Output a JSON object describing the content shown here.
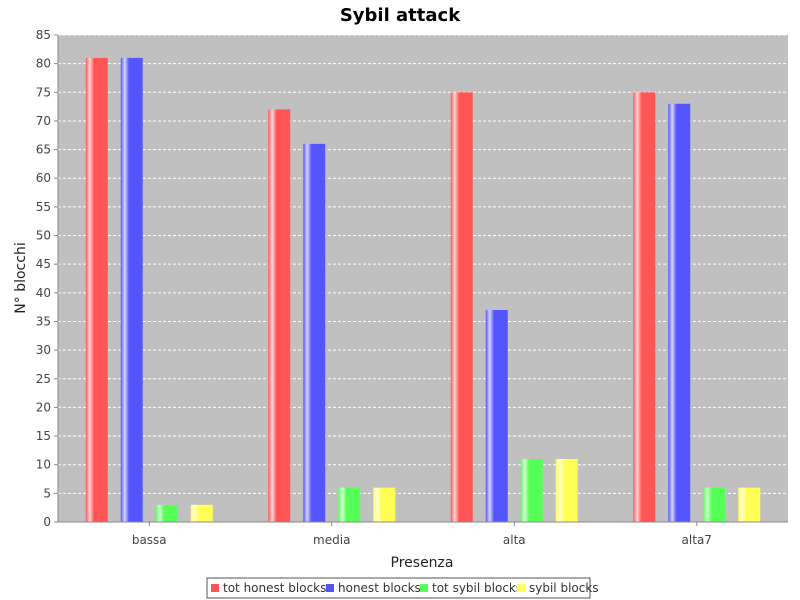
{
  "chart_data": {
    "type": "bar",
    "title": "Sybil attack",
    "xlabel": "Presenza",
    "ylabel": "N° blocchi",
    "categories": [
      "bassa",
      "media",
      "alta",
      "alta7"
    ],
    "series": [
      {
        "name": "tot honest blocks",
        "color": "#ff5555",
        "values": [
          81,
          72,
          75,
          75
        ]
      },
      {
        "name": "honest blocks",
        "color": "#5555ff",
        "values": [
          81,
          66,
          37,
          73
        ]
      },
      {
        "name": "tot sybil blocks",
        "color": "#55ff55",
        "values": [
          3,
          6,
          11,
          6
        ]
      },
      {
        "name": "sybil blocks",
        "color": "#ffff55",
        "values": [
          3,
          6,
          11,
          6
        ]
      }
    ],
    "ylim": [
      0,
      85
    ],
    "yticks": [
      0,
      5,
      10,
      15,
      20,
      25,
      30,
      35,
      40,
      45,
      50,
      55,
      60,
      65,
      70,
      75,
      80,
      85
    ],
    "grid": true,
    "legend_position": "bottom",
    "plot_background": "#c0c0c0"
  }
}
